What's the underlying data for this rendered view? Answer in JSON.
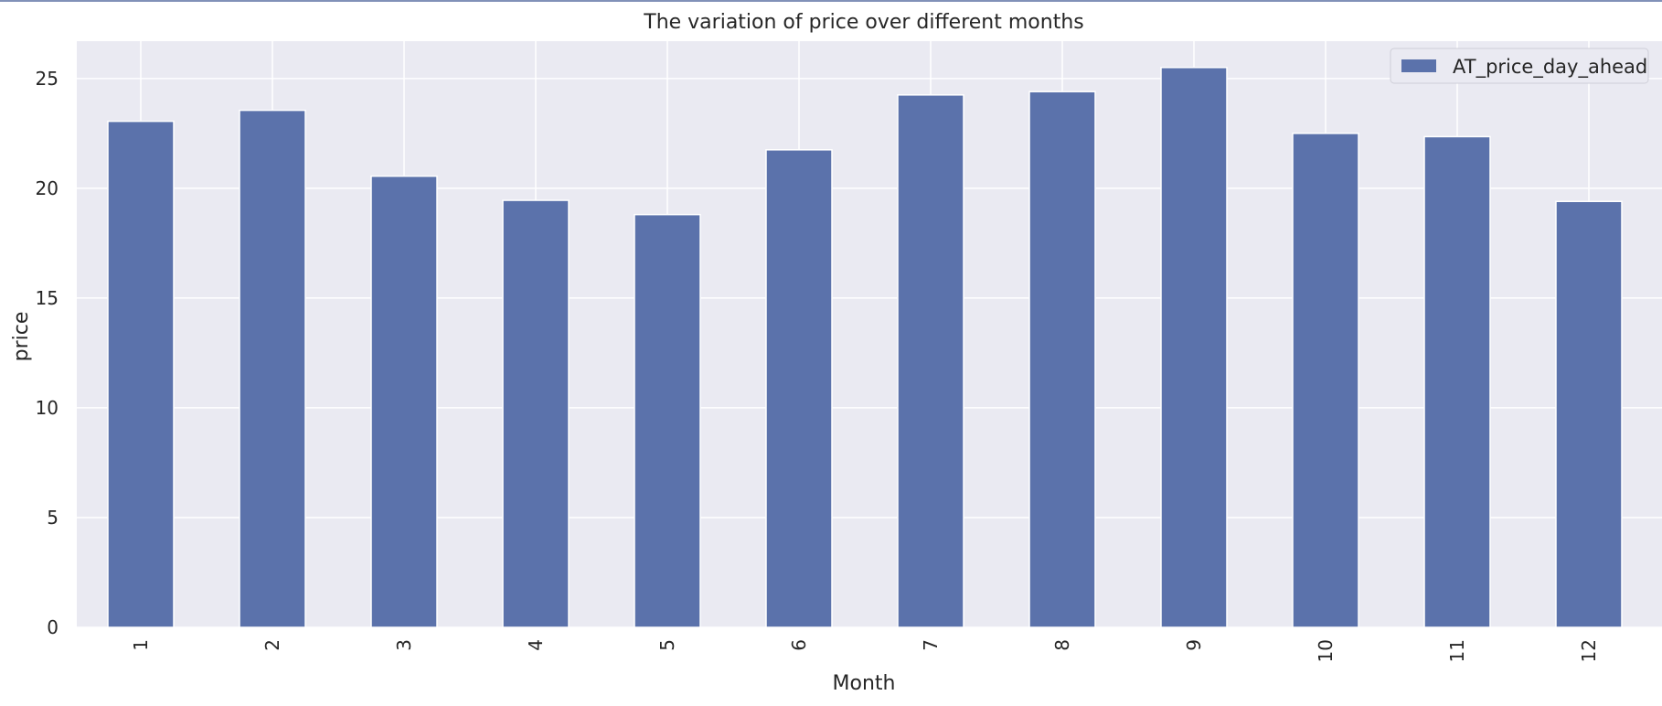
{
  "chart_data": {
    "type": "bar",
    "title": "The variation of price over different months",
    "xlabel": "Month",
    "ylabel": "price",
    "categories": [
      "1",
      "2",
      "3",
      "4",
      "5",
      "6",
      "7",
      "8",
      "9",
      "10",
      "11",
      "12"
    ],
    "series": [
      {
        "name": "AT_price_day_ahead",
        "values": [
          23.05,
          23.55,
          20.55,
          19.45,
          18.8,
          21.75,
          24.25,
          24.4,
          25.5,
          22.5,
          22.35,
          19.4
        ]
      }
    ],
    "ylim": [
      0,
      26.7
    ],
    "yticks": [
      "0",
      "5",
      "10",
      "15",
      "20",
      "25"
    ],
    "grid": true,
    "legend_position": "top-right",
    "colors": {
      "bar": "#5b72ab",
      "plot_background": "#eaeaf2",
      "grid": "#ffffff",
      "frame": "#8191b8"
    }
  }
}
